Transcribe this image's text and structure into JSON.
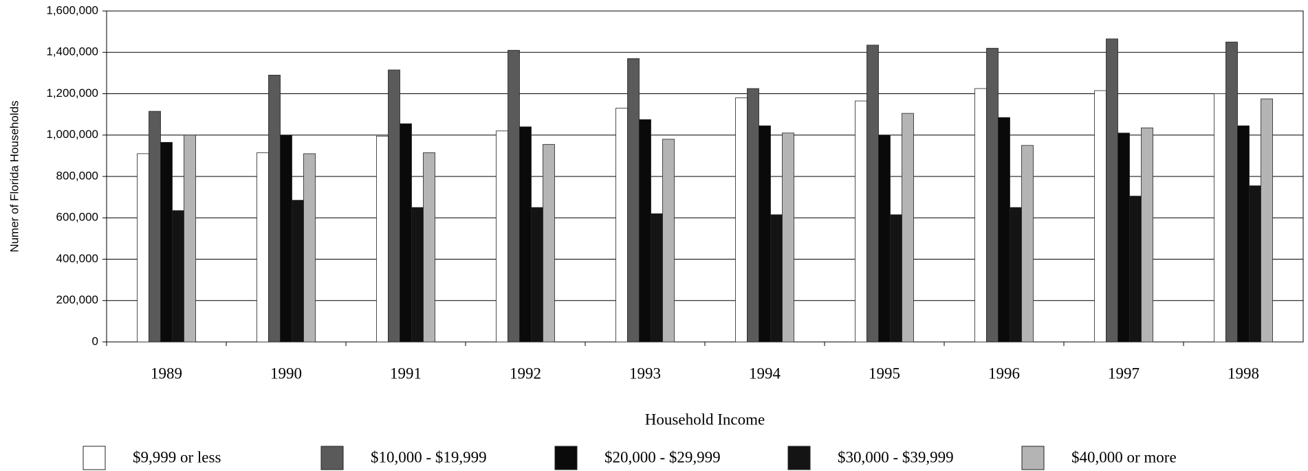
{
  "chart_data": {
    "type": "bar",
    "x_label": "Household Income",
    "y_label": "Numer of Florida Households",
    "categories": [
      "1989",
      "1990",
      "1991",
      "1992",
      "1993",
      "1994",
      "1995",
      "1996",
      "1997",
      "1998"
    ],
    "series": [
      {
        "name": "$9,999 or less",
        "color": "#ffffff",
        "values": [
          910000,
          915000,
          995000,
          1020000,
          1130000,
          1180000,
          1165000,
          1225000,
          1215000,
          1200000
        ]
      },
      {
        "name": "$10,000 - $19,999",
        "color": "#5a5a5a",
        "values": [
          1115000,
          1290000,
          1315000,
          1410000,
          1370000,
          1225000,
          1435000,
          1420000,
          1465000,
          1450000
        ]
      },
      {
        "name": "$20,000 - $29,999",
        "color": "#0a0a0a",
        "values": [
          965000,
          1000000,
          1055000,
          1040000,
          1075000,
          1045000,
          1000000,
          1085000,
          1010000,
          1045000
        ]
      },
      {
        "name": "$30,000 - $39,999",
        "color": "#141414",
        "values": [
          635000,
          685000,
          650000,
          650000,
          620000,
          615000,
          615000,
          650000,
          705000,
          755000
        ]
      },
      {
        "name": "$40,000 or more",
        "color": "#b4b4b4",
        "values": [
          1000000,
          910000,
          915000,
          955000,
          980000,
          1010000,
          1105000,
          950000,
          1035000,
          1175000
        ]
      }
    ],
    "ylim": [
      0,
      1600000
    ],
    "yticks": [
      0,
      {
        "value": 200000,
        "label": "200,000"
      },
      {
        "value": 400000,
        "label": "400,000"
      },
      {
        "value": 600000,
        "label": "600,000"
      },
      {
        "value": 800000,
        "label": "800,000"
      },
      {
        "value": 1000000,
        "label": "1,000,000"
      },
      {
        "value": 1200000,
        "label": "1,200,000"
      },
      {
        "value": 1400000,
        "label": "1,400,000"
      },
      {
        "value": 1600000,
        "label": "1,600,000"
      }
    ],
    "grid": true
  }
}
